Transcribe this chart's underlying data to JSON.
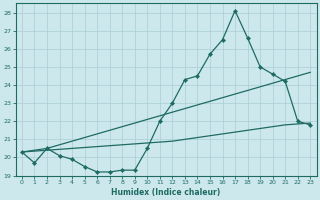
{
  "xlabel": "Humidex (Indice chaleur)",
  "bg_color": "#cde8ed",
  "grid_color": "#aacdd4",
  "line_color": "#1e6b63",
  "x_values": [
    0,
    1,
    2,
    3,
    4,
    5,
    6,
    7,
    8,
    9,
    10,
    11,
    12,
    13,
    14,
    15,
    16,
    17,
    18,
    19,
    20,
    21,
    22,
    23
  ],
  "main_line_y": [
    20.3,
    19.7,
    20.5,
    20.1,
    19.9,
    19.5,
    19.2,
    19.2,
    19.3,
    19.3,
    20.5,
    22.0,
    23.0,
    24.3,
    24.5,
    25.7,
    26.5,
    28.1,
    26.6,
    25.0,
    24.6,
    24.2,
    22.0,
    21.8
  ],
  "upper_line_y": [
    20.3,
    20.4,
    20.5,
    20.7,
    20.9,
    21.1,
    21.3,
    21.5,
    21.7,
    21.9,
    22.1,
    22.3,
    22.5,
    22.7,
    22.9,
    23.1,
    23.3,
    23.5,
    23.7,
    23.9,
    24.1,
    24.3,
    24.5,
    24.7
  ],
  "lower_line_y": [
    20.3,
    20.35,
    20.4,
    20.45,
    20.5,
    20.55,
    20.6,
    20.65,
    20.7,
    20.75,
    20.8,
    20.85,
    20.9,
    21.0,
    21.1,
    21.2,
    21.3,
    21.4,
    21.5,
    21.6,
    21.7,
    21.8,
    21.85,
    21.9
  ],
  "ylim": [
    19,
    28.5
  ],
  "xlim": [
    -0.5,
    23.5
  ],
  "yticks": [
    19,
    20,
    21,
    22,
    23,
    24,
    25,
    26,
    27,
    28
  ],
  "xticks": [
    0,
    1,
    2,
    3,
    4,
    5,
    6,
    7,
    8,
    9,
    10,
    11,
    12,
    13,
    14,
    15,
    16,
    17,
    18,
    19,
    20,
    21,
    22,
    23
  ]
}
